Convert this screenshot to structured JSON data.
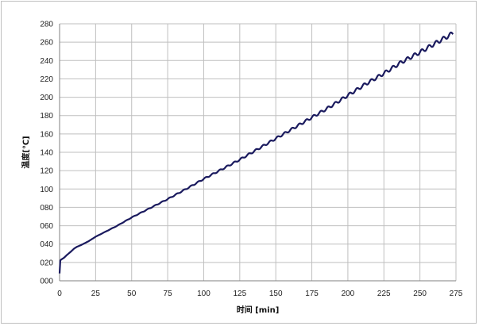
{
  "chart_data": {
    "type": "line",
    "xlabel": "时间 [min]",
    "ylabel": "温度[℃]",
    "xlim": [
      0,
      275
    ],
    "ylim": [
      0,
      280
    ],
    "x_ticks": [
      "0",
      "25",
      "50",
      "75",
      "100",
      "125",
      "150",
      "175",
      "200",
      "225",
      "250",
      "275"
    ],
    "y_ticks": [
      "000",
      "020",
      "040",
      "060",
      "080",
      "100",
      "120",
      "140",
      "160",
      "180",
      "200",
      "220",
      "240",
      "260",
      "280"
    ],
    "grid": true,
    "legend": "none",
    "colors": {
      "line": "#1a1a5e",
      "grid": "#bfbfbf",
      "axis": "#808080"
    },
    "series": [
      {
        "x": [
          0,
          0.5,
          1,
          3,
          5,
          8,
          10,
          12,
          15,
          20,
          25,
          30,
          40,
          50,
          60,
          75,
          90,
          100,
          112,
          125,
          137,
          150,
          162,
          175,
          187,
          200,
          212,
          225,
          237,
          250,
          262,
          270,
          273
        ],
        "y": [
          8,
          22,
          23,
          25,
          28,
          32,
          35,
          37,
          39,
          43,
          48,
          52,
          60,
          69,
          77,
          89,
          102,
          111,
          121,
          132,
          143,
          155,
          166,
          178,
          189,
          202,
          214,
          226,
          238,
          249,
          260,
          267,
          270
        ],
        "oscillation": {
          "period_min": 5,
          "amplitude_max_c": 2.2
        }
      }
    ]
  }
}
